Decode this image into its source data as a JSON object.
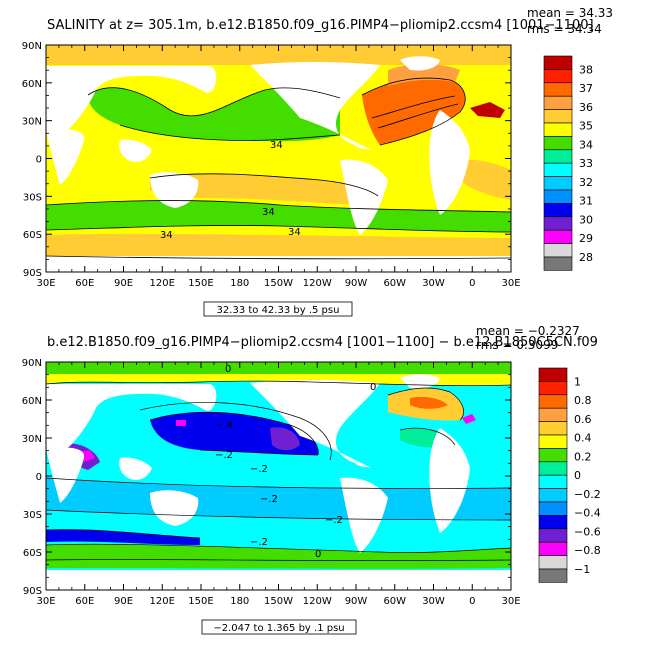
{
  "panel1": {
    "title": "SALINITY at z= 305.1m, b.e12.B1850.f09_g16.PIMP4−pliomip2.ccsm4 [1001−1100]",
    "mean": "mean = 34.33",
    "rms": "rms = 34.34",
    "range": "32.33 to 42.33 by .5 psu",
    "contour_labels": [
      "34",
      "34",
      "34",
      "34"
    ],
    "colorbar": {
      "labels": [
        "38",
        "37",
        "36",
        "35",
        "34",
        "33",
        "32",
        "31",
        "30",
        "29",
        "28"
      ],
      "colors": [
        "#c00000",
        "#ff2000",
        "#ff6a00",
        "#ffa040",
        "#ffcc33",
        "#ffff00",
        "#44dd00",
        "#00ee99",
        "#00ffff",
        "#00ccff",
        "#0090ff",
        "#0000ee",
        "#7020d0",
        "#ff00ff",
        "#d9d9d9",
        "#777777"
      ]
    }
  },
  "panel2": {
    "title": "b.e12.B1850.f09_g16.PIMP4−pliomip2.ccsm4 [1001−1100] − b.e12.B1850C5CN.f09",
    "mean": "mean = −0.2327",
    "rms": "rms = 0.3099",
    "range": "−2.047 to 1.365 by .1 psu",
    "contour_labels": [
      "0",
      "0",
      "−.2",
      "−.4",
      "−.2",
      "−.2",
      "−.2",
      "−.2",
      "0"
    ],
    "colorbar": {
      "labels": [
        "1",
        "0.8",
        "0.6",
        "0.4",
        "0.2",
        "0",
        "−0.2",
        "−0.4",
        "−0.6",
        "−0.8",
        "−1"
      ],
      "colors": [
        "#c00000",
        "#ff2000",
        "#ff6a00",
        "#ffa040",
        "#ffcc33",
        "#ffff00",
        "#44dd00",
        "#00ee99",
        "#00ffff",
        "#00ccff",
        "#0090ff",
        "#0000ee",
        "#7020d0",
        "#ff00ff",
        "#d9d9d9",
        "#777777"
      ]
    }
  },
  "axes": {
    "lat_labels": [
      "90N",
      "60N",
      "30N",
      "0",
      "30S",
      "60S",
      "90S"
    ],
    "lon_labels": [
      "30E",
      "60E",
      "90E",
      "120E",
      "150E",
      "180",
      "150W",
      "120W",
      "90W",
      "60W",
      "30W",
      "0",
      "30E"
    ]
  }
}
